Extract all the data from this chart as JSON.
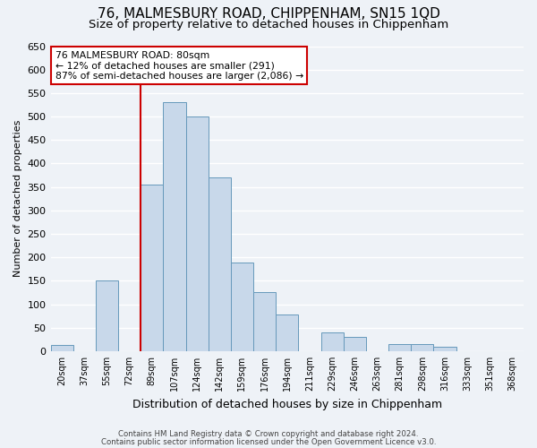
{
  "title": "76, MALMESBURY ROAD, CHIPPENHAM, SN15 1QD",
  "subtitle": "Size of property relative to detached houses in Chippenham",
  "xlabel": "Distribution of detached houses by size in Chippenham",
  "ylabel": "Number of detached properties",
  "footnote1": "Contains HM Land Registry data © Crown copyright and database right 2024.",
  "footnote2": "Contains public sector information licensed under the Open Government Licence v3.0.",
  "bar_labels": [
    "20sqm",
    "37sqm",
    "55sqm",
    "72sqm",
    "89sqm",
    "107sqm",
    "124sqm",
    "142sqm",
    "159sqm",
    "176sqm",
    "194sqm",
    "211sqm",
    "229sqm",
    "246sqm",
    "263sqm",
    "281sqm",
    "298sqm",
    "316sqm",
    "333sqm",
    "351sqm",
    "368sqm"
  ],
  "bar_values": [
    13,
    0,
    150,
    0,
    355,
    530,
    500,
    370,
    188,
    125,
    78,
    0,
    40,
    30,
    0,
    15,
    15,
    10,
    0,
    0,
    0
  ],
  "bar_color": "#c8d8ea",
  "bar_edge_color": "#6699bb",
  "vline_color": "#cc0000",
  "annotation_text": "76 MALMESBURY ROAD: 80sqm\n← 12% of detached houses are smaller (291)\n87% of semi-detached houses are larger (2,086) →",
  "annotation_box_color": "#ffffff",
  "annotation_box_edge": "#cc0000",
  "ylim": [
    0,
    650
  ],
  "yticks": [
    0,
    50,
    100,
    150,
    200,
    250,
    300,
    350,
    400,
    450,
    500,
    550,
    600,
    650
  ],
  "bg_color": "#eef2f7",
  "grid_color": "#ffffff",
  "title_fontsize": 11,
  "subtitle_fontsize": 9.5,
  "ylabel_fontsize": 8,
  "xlabel_fontsize": 9
}
